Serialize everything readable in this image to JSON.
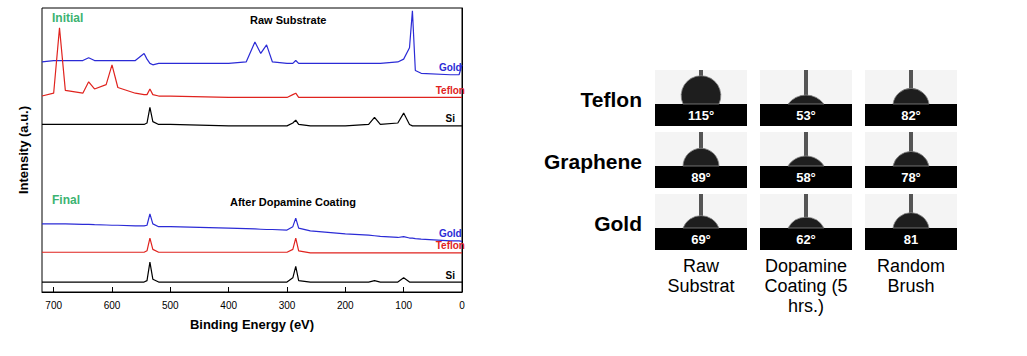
{
  "chart_data": {
    "type": "line",
    "x_label": "Binding Energy (eV)",
    "y_label": "Intensity (a.u.)",
    "xlim": [
      720,
      0
    ],
    "xticks": [
      700,
      600,
      500,
      400,
      300,
      200,
      100,
      0
    ],
    "ylim": [
      0,
      100
    ],
    "tick_labels": "x",
    "grid": false,
    "annotations": [
      {
        "text": "Initial",
        "color": "#3cb371"
      },
      {
        "text": "Raw Substrate",
        "color": "#000000"
      },
      {
        "text": "Final",
        "color": "#3cb371"
      },
      {
        "text": "After Dopamine Coating",
        "color": "#000000"
      }
    ],
    "x": [
      720,
      700,
      690,
      680,
      650,
      640,
      630,
      610,
      600,
      590,
      560,
      545,
      540,
      535,
      530,
      520,
      500,
      400,
      370,
      355,
      345,
      335,
      325,
      300,
      290,
      285,
      280,
      260,
      200,
      160,
      150,
      140,
      110,
      100,
      90,
      85,
      80,
      70,
      20,
      5,
      0
    ],
    "series": [
      {
        "name": "Gold",
        "color": "#2b2bd6",
        "values": [
          81,
          81.5,
          81.5,
          81.5,
          81.5,
          82.5,
          81.5,
          81.5,
          81.5,
          81.5,
          81.5,
          84,
          82,
          80.5,
          80,
          80.5,
          80.5,
          80.5,
          81,
          88,
          84,
          87,
          81,
          80.5,
          80.5,
          81.5,
          80.5,
          80.5,
          80.5,
          80.5,
          80.5,
          80.5,
          81,
          82,
          86,
          99,
          78,
          77,
          76.5,
          76.5,
          80
        ]
      },
      {
        "name": "Teflon",
        "color": "#e0231e",
        "values": [
          69,
          70,
          93,
          71,
          70,
          74,
          71.5,
          73,
          80,
          72,
          70,
          69.5,
          69.5,
          71.5,
          69.5,
          69,
          69,
          68.5,
          68.5,
          68.5,
          68.5,
          68.5,
          68.5,
          68.5,
          69.5,
          70,
          68.5,
          68.5,
          68.5,
          68.5,
          68.5,
          68.5,
          68.5,
          68.5,
          68.5,
          68.5,
          68.5,
          68.5,
          68.5,
          68.5,
          68.5
        ]
      },
      {
        "name": "Si",
        "color": "#000000",
        "values": [
          59,
          59,
          59,
          59,
          59,
          59,
          59,
          59,
          59,
          59,
          59,
          59,
          59.5,
          65,
          60,
          59,
          59,
          58.5,
          58.5,
          58.5,
          58.5,
          58.5,
          58.5,
          58.5,
          59.5,
          60.5,
          59,
          58.5,
          58.5,
          59,
          61.5,
          59,
          59.5,
          63,
          59,
          58.5,
          58.5,
          58.5,
          58.5,
          58.5,
          58.5
        ]
      },
      {
        "name": "Gold",
        "color": "#2b2bd6",
        "values": [
          24,
          24,
          24,
          24,
          23.8,
          23.8,
          23.7,
          23.6,
          23.5,
          23.5,
          23.3,
          23.3,
          23.5,
          27.5,
          24,
          23,
          23,
          22.5,
          22.3,
          22.2,
          22.1,
          22,
          22,
          21.8,
          23,
          26,
          22.5,
          21.5,
          20.5,
          20,
          19.8,
          19.6,
          19.2,
          19.5,
          19,
          19,
          18.8,
          18.6,
          18,
          18,
          17.8
        ]
      },
      {
        "name": "Teflon",
        "color": "#e0231e",
        "values": [
          14,
          14,
          14,
          14,
          14,
          14,
          14,
          14,
          14,
          14,
          14,
          14,
          14.5,
          19,
          15,
          14,
          14,
          14,
          14,
          14,
          14,
          14,
          14,
          14,
          15,
          19,
          14.5,
          13.8,
          13.8,
          13.8,
          13.8,
          13.8,
          13.8,
          13.8,
          13.8,
          13.8,
          13.8,
          13.8,
          13.8,
          13.8,
          13.8
        ]
      },
      {
        "name": "Si",
        "color": "#000000",
        "values": [
          3.5,
          3.5,
          3.5,
          3.5,
          3.5,
          3.5,
          3.5,
          3.5,
          3.5,
          3.5,
          3.5,
          3.5,
          4,
          10.5,
          4.5,
          3.5,
          3.5,
          3.5,
          3.5,
          3.5,
          3.5,
          3.5,
          3.5,
          3.5,
          5,
          9,
          4,
          3.5,
          3.5,
          3.5,
          4,
          3.5,
          3.5,
          5,
          3.5,
          3.5,
          3.5,
          3.5,
          3.5,
          3.5,
          3.5
        ]
      }
    ]
  },
  "contact_angles": {
    "rows": [
      "Teflon",
      "Graphene",
      "Gold"
    ],
    "columns": [
      "Raw Substrat",
      "Dopamine Coating (5 hrs.)",
      "Random Brush"
    ],
    "values": [
      [
        115,
        53,
        82
      ],
      [
        89,
        58,
        78
      ],
      [
        69,
        62,
        81
      ]
    ],
    "value_labels": [
      [
        "115°",
        "53°",
        "82°"
      ],
      [
        "89°",
        "58°",
        "78°"
      ],
      [
        "69°",
        "62°",
        "81"
      ]
    ]
  }
}
